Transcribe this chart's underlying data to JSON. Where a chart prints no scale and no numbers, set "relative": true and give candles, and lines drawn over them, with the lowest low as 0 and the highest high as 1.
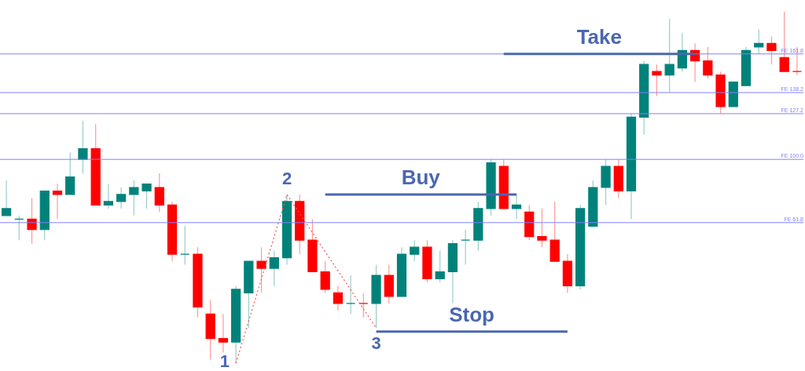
{
  "chart_data": {
    "type": "candlestick",
    "relative": true,
    "tick_labels": false,
    "categories": [
      null,
      null,
      null,
      null,
      null,
      null,
      null,
      null,
      null,
      null,
      null,
      null,
      null,
      null,
      null,
      null,
      null,
      null,
      null,
      null,
      null,
      null,
      null,
      null,
      null,
      null,
      null,
      null,
      null,
      null,
      null,
      null,
      null,
      null,
      null,
      null,
      null,
      null,
      null,
      null,
      null,
      null,
      null,
      null,
      null,
      null,
      null,
      null,
      null,
      null,
      null,
      null,
      null,
      null,
      null,
      null,
      null,
      null,
      null,
      null,
      null,
      null,
      null
    ],
    "ohlc": [
      [
        0.42,
        0.52,
        0.42,
        0.44
      ],
      [
        0.41,
        0.42,
        0.35,
        0.41
      ],
      [
        0.41,
        0.47,
        0.34,
        0.38
      ],
      [
        0.38,
        0.49,
        0.35,
        0.49
      ],
      [
        0.49,
        0.51,
        0.41,
        0.48
      ],
      [
        0.48,
        0.6,
        0.48,
        0.53
      ],
      [
        0.58,
        0.69,
        0.54,
        0.61
      ],
      [
        0.61,
        0.68,
        0.45,
        0.45
      ],
      [
        0.45,
        0.51,
        0.44,
        0.46
      ],
      [
        0.46,
        0.5,
        0.44,
        0.48
      ],
      [
        0.48,
        0.52,
        0.42,
        0.5
      ],
      [
        0.49,
        0.51,
        0.44,
        0.51
      ],
      [
        0.5,
        0.54,
        0.43,
        0.45
      ],
      [
        0.45,
        0.46,
        0.29,
        0.31
      ],
      [
        0.31,
        0.39,
        0.28,
        0.31
      ],
      [
        0.31,
        0.33,
        0.13,
        0.16
      ],
      [
        0.14,
        0.18,
        0.01,
        0.07
      ],
      [
        0.07,
        0.14,
        0.03,
        0.06
      ],
      [
        0.06,
        0.22,
        0,
        0.21
      ],
      [
        0.2,
        0.29,
        0.1,
        0.29
      ],
      [
        0.29,
        0.33,
        0.2,
        0.27
      ],
      [
        0.27,
        0.32,
        0.22,
        0.3
      ],
      [
        0.3,
        0.48,
        0.28,
        0.46
      ],
      [
        0.46,
        0.48,
        0.31,
        0.35
      ],
      [
        0.35,
        0.41,
        0.26,
        0.26
      ],
      [
        0.26,
        0.29,
        0.2,
        0.21
      ],
      [
        0.2,
        0.22,
        0.15,
        0.17
      ],
      [
        0.17,
        0.25,
        0.14,
        0.17
      ],
      [
        0.17,
        0.2,
        0.13,
        0.17
      ],
      [
        0.17,
        0.28,
        0.1,
        0.25
      ],
      [
        0.25,
        0.28,
        0.17,
        0.19
      ],
      [
        0.19,
        0.33,
        0.19,
        0.31
      ],
      [
        0.31,
        0.35,
        0.29,
        0.33
      ],
      [
        0.33,
        0.35,
        0.23,
        0.24
      ],
      [
        0.24,
        0.32,
        0.23,
        0.26
      ],
      [
        0.26,
        0.35,
        0.17,
        0.34
      ],
      [
        0.35,
        0.38,
        0.28,
        0.35
      ],
      [
        0.35,
        0.46,
        0.32,
        0.44
      ],
      [
        0.44,
        0.58,
        0.42,
        0.57
      ],
      [
        0.56,
        0.58,
        0.44,
        0.44
      ],
      [
        0.44,
        0.48,
        0.41,
        0.45
      ],
      [
        0.43,
        0.45,
        0.35,
        0.36
      ],
      [
        0.36,
        0.44,
        0.33,
        0.35
      ],
      [
        0.35,
        0.46,
        0.29,
        0.29
      ],
      [
        0.29,
        0.31,
        0.2,
        0.22
      ],
      [
        0.22,
        0.45,
        0.21,
        0.44
      ],
      [
        0.39,
        0.52,
        0.39,
        0.5
      ],
      [
        0.5,
        0.58,
        0.45,
        0.56
      ],
      [
        0.56,
        0.58,
        0.47,
        0.49
      ],
      [
        0.49,
        0.71,
        0.41,
        0.7
      ],
      [
        0.7,
        0.86,
        0.65,
        0.85
      ],
      [
        0.83,
        0.85,
        0.76,
        0.82
      ],
      [
        0.82,
        0.98,
        0.77,
        0.85
      ],
      [
        0.84,
        0.94,
        0.83,
        0.89
      ],
      [
        0.89,
        0.91,
        0.8,
        0.86
      ],
      [
        0.86,
        0.9,
        0.81,
        0.82
      ],
      [
        0.82,
        0.83,
        0.71,
        0.73
      ],
      [
        0.73,
        0.8,
        0.73,
        0.8
      ],
      [
        0.79,
        0.9,
        0.79,
        0.89
      ],
      [
        0.9,
        0.95,
        0.88,
        0.91
      ],
      [
        0.91,
        0.93,
        0.85,
        0.89
      ],
      [
        0.87,
        1.0,
        0.83,
        0.83
      ],
      [
        0.83,
        0.9,
        0.82,
        0.83
      ]
    ],
    "colors": [
      "#00827a",
      "#00827a",
      "#ff0000",
      "#00827a",
      "#ff0000",
      "#00827a",
      "#00827a",
      "#ff0000",
      "#00827a",
      "#00827a",
      "#00827a",
      "#00827a",
      "#ff0000",
      "#ff0000",
      "#00827a",
      "#ff0000",
      "#ff0000",
      "#ff0000",
      "#00827a",
      "#00827a",
      "#ff0000",
      "#00827a",
      "#00827a",
      "#ff0000",
      "#ff0000",
      "#ff0000",
      "#ff0000",
      "#00827a",
      "#ff0000",
      "#00827a",
      "#ff0000",
      "#00827a",
      "#00827a",
      "#ff0000",
      "#00827a",
      "#00827a",
      "#00827a",
      "#00827a",
      "#00827a",
      "#ff0000",
      "#00827a",
      "#ff0000",
      "#ff0000",
      "#ff0000",
      "#ff0000",
      "#00827a",
      "#00827a",
      "#00827a",
      "#ff0000",
      "#00827a",
      "#00827a",
      "#ff0000",
      "#00827a",
      "#00827a",
      "#ff0000",
      "#ff0000",
      "#ff0000",
      "#00827a",
      "#00827a",
      "#00827a",
      "#ff0000",
      "#ff0000",
      "#ff0000"
    ],
    "series": [
      {
        "type": "line",
        "name": "Take",
        "color": "#4a67b0",
        "values": [
          null,
          null,
          null,
          null,
          null,
          null,
          null,
          null,
          null,
          null,
          null,
          null,
          null,
          null,
          null,
          null,
          null,
          null,
          null,
          null,
          null,
          null,
          null,
          null,
          null,
          null,
          null,
          null,
          null,
          null,
          null,
          null,
          null,
          null,
          null,
          null,
          null,
          null,
          null,
          0.88,
          0.88,
          0.88,
          0.88,
          0.88,
          0.88,
          0.88,
          0.88,
          0.88,
          0.88,
          0.88,
          0.88,
          0.88,
          0.88,
          0.88,
          0.88,
          null,
          null,
          null,
          null,
          null,
          null,
          null,
          null
        ]
      },
      {
        "type": "line",
        "name": "Buy",
        "color": "#4a67b0",
        "values": [
          null,
          null,
          null,
          null,
          null,
          null,
          null,
          null,
          null,
          null,
          null,
          null,
          null,
          null,
          null,
          null,
          null,
          null,
          null,
          null,
          null,
          null,
          null,
          null,
          null,
          0.48,
          0.48,
          0.48,
          0.48,
          0.48,
          0.48,
          0.48,
          0.48,
          0.48,
          0.48,
          0.48,
          0.48,
          0.48,
          0.48,
          0.48,
          0.48,
          null,
          null,
          null,
          null,
          null,
          null,
          null,
          null,
          null,
          null,
          null,
          null,
          null,
          null,
          null,
          null,
          null,
          null,
          null,
          null,
          null,
          null
        ]
      },
      {
        "type": "line",
        "name": "Stop",
        "color": "#4a67b0",
        "values": [
          null,
          null,
          null,
          null,
          null,
          null,
          null,
          null,
          null,
          null,
          null,
          null,
          null,
          null,
          null,
          null,
          null,
          null,
          null,
          null,
          null,
          null,
          null,
          null,
          null,
          null,
          null,
          null,
          null,
          0.09,
          0.09,
          0.09,
          0.09,
          0.09,
          0.09,
          0.09,
          0.09,
          0.09,
          0.09,
          0.09,
          0.09,
          0.09,
          0.09,
          0.09,
          0.09,
          null,
          null,
          null,
          null,
          null,
          null,
          null,
          null,
          null,
          null,
          null,
          null,
          null,
          null,
          null,
          null,
          null,
          null
        ]
      },
      {
        "type": "line",
        "color": "#ff5050",
        "line_style": "dotted",
        "values": [
          null,
          null,
          null,
          null,
          null,
          null,
          null,
          null,
          null,
          null,
          null,
          null,
          null,
          null,
          null,
          null,
          null,
          null,
          0,
          null,
          null,
          null,
          0.48,
          null,
          null,
          null,
          null,
          null,
          null,
          0.1,
          null,
          null,
          null,
          null,
          null,
          null,
          null,
          null,
          null,
          null,
          null,
          null,
          null,
          null,
          null,
          null,
          null,
          null,
          null,
          null,
          null,
          null,
          null,
          null,
          null,
          null,
          null,
          null,
          null,
          null,
          null,
          null,
          null
        ]
      }
    ],
    "annotations": [
      "1",
      "2",
      "3"
    ],
    "ref_lines": [
      {
        "axis": "y",
        "value": 0.88,
        "label": "FE 161.8",
        "color": "#8080ff"
      },
      {
        "axis": "y",
        "value": 0.77,
        "label": "FE 138.2",
        "color": "#8080ff"
      },
      {
        "axis": "y",
        "value": 0.71,
        "label": "FE 127.2",
        "color": "#8080ff"
      },
      {
        "axis": "y",
        "value": 0.58,
        "label": "FE 100.0",
        "color": "#8080ff"
      },
      {
        "axis": "y",
        "value": 0.4,
        "label": "FE 61.8",
        "color": "#8080ff"
      }
    ]
  }
}
